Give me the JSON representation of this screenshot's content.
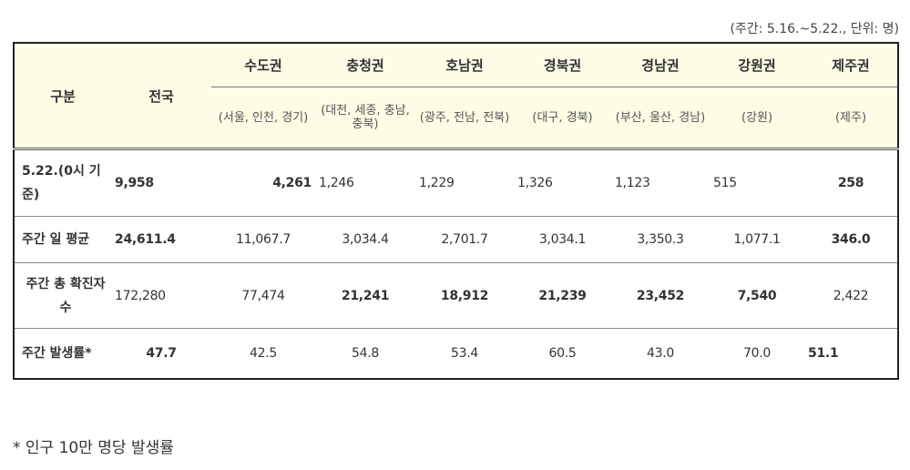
{
  "unit_note": "(주간: 5.16.~5.22., 단위: 명)",
  "header": {
    "category": "구분",
    "national": "전국",
    "regions": [
      {
        "name": "수도권",
        "sub": "(서울, 인천, 경기)"
      },
      {
        "name": "충청권",
        "sub": "(대전, 세종, 충남, 충북)"
      },
      {
        "name": "호남권",
        "sub": "(광주, 전남, 전북)"
      },
      {
        "name": "경북권",
        "sub": "(대구, 경북)"
      },
      {
        "name": "경남권",
        "sub": "(부산, 울산, 경남)"
      },
      {
        "name": "강원권",
        "sub": "(강원)"
      },
      {
        "name": "제주권",
        "sub": "(제주)"
      }
    ]
  },
  "rows": [
    {
      "label": "5.22.(0시 기준)",
      "national": "9,958",
      "values": [
        "4,261",
        "1,246",
        "1,229",
        "1,326",
        "1,123",
        "515",
        "258"
      ]
    },
    {
      "label": "주간 일 평균",
      "national": "24,611.4",
      "values": [
        "11,067.7",
        "3,034.4",
        "2,701.7",
        "3,034.1",
        "3,350.3",
        "1,077.1",
        "346.0"
      ]
    },
    {
      "label": "주간 총 확진자수",
      "national": "172,280",
      "values": [
        "77,474",
        "21,241",
        "18,912",
        "21,239",
        "23,452",
        "7,540",
        "2,422"
      ]
    },
    {
      "label": "주간 발생률*",
      "national": "47.7",
      "values": [
        "42.5",
        "54.8",
        "53.4",
        "60.5",
        "43.0",
        "70.0",
        "51.1"
      ]
    }
  ],
  "footnote": "* 인구 10만 명당 발생률"
}
